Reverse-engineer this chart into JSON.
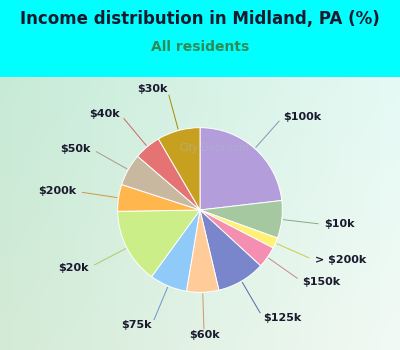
{
  "title": "Income distribution in Midland, PA (%)",
  "subtitle": "All residents",
  "title_color": "#1a1a2e",
  "subtitle_color": "#2e8b57",
  "background_outer": "#00ffff",
  "background_inner_tl": "#c8e8d8",
  "background_inner_br": "#e8f8f0",
  "watermark": "City-Data.com",
  "labels": [
    "$100k",
    "$10k",
    "> $200k",
    "$150k",
    "$125k",
    "$60k",
    "$75k",
    "$20k",
    "$200k",
    "$50k",
    "$40k",
    "$30k"
  ],
  "values": [
    22,
    7,
    2,
    4,
    9,
    6,
    7,
    14,
    5,
    6,
    5,
    8
  ],
  "colors": [
    "#b39ddb",
    "#a5c8a0",
    "#fff176",
    "#f48fb1",
    "#7986cb",
    "#ffcc99",
    "#90caf9",
    "#ccee88",
    "#ffb74d",
    "#c8b8a0",
    "#e57373",
    "#c8a020"
  ],
  "line_colors": [
    "#9090bb",
    "#88aa88",
    "#cccc44",
    "#cc8888",
    "#5566aa",
    "#cc9966",
    "#6699cc",
    "#aacc66",
    "#cc9944",
    "#aa9988",
    "#cc6666",
    "#aa8800"
  ],
  "label_color": "#1a1a2e",
  "label_fontsize": 8,
  "title_fontsize": 12,
  "subtitle_fontsize": 10
}
